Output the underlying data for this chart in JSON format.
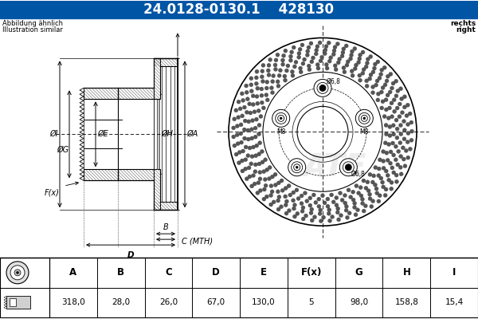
{
  "title_part1": "24.0128-0130.1",
  "title_part2": "428130",
  "title_bg": "#0055a5",
  "title_fg": "#ffffff",
  "abbildung_line1": "Abbildung ähnlich",
  "abbildung_line2": "Illustration similar",
  "rechts_line1": "rechts",
  "rechts_line2": "right",
  "bg_color": "#ffffff",
  "line_color": "#000000",
  "table_headers": [
    "A",
    "B",
    "C",
    "D",
    "E",
    "F(x)",
    "G",
    "H",
    "I"
  ],
  "table_values": [
    "318,0",
    "28,0",
    "26,0",
    "67,0",
    "130,0",
    "5",
    "98,0",
    "158,8",
    "15,4"
  ],
  "dim_labels_left": [
    "ØI",
    "ØG",
    "ØE",
    "ØH",
    "ØA",
    "F(x)"
  ],
  "dim_labels_bottom": [
    "B",
    "C (MTH)",
    "D"
  ]
}
